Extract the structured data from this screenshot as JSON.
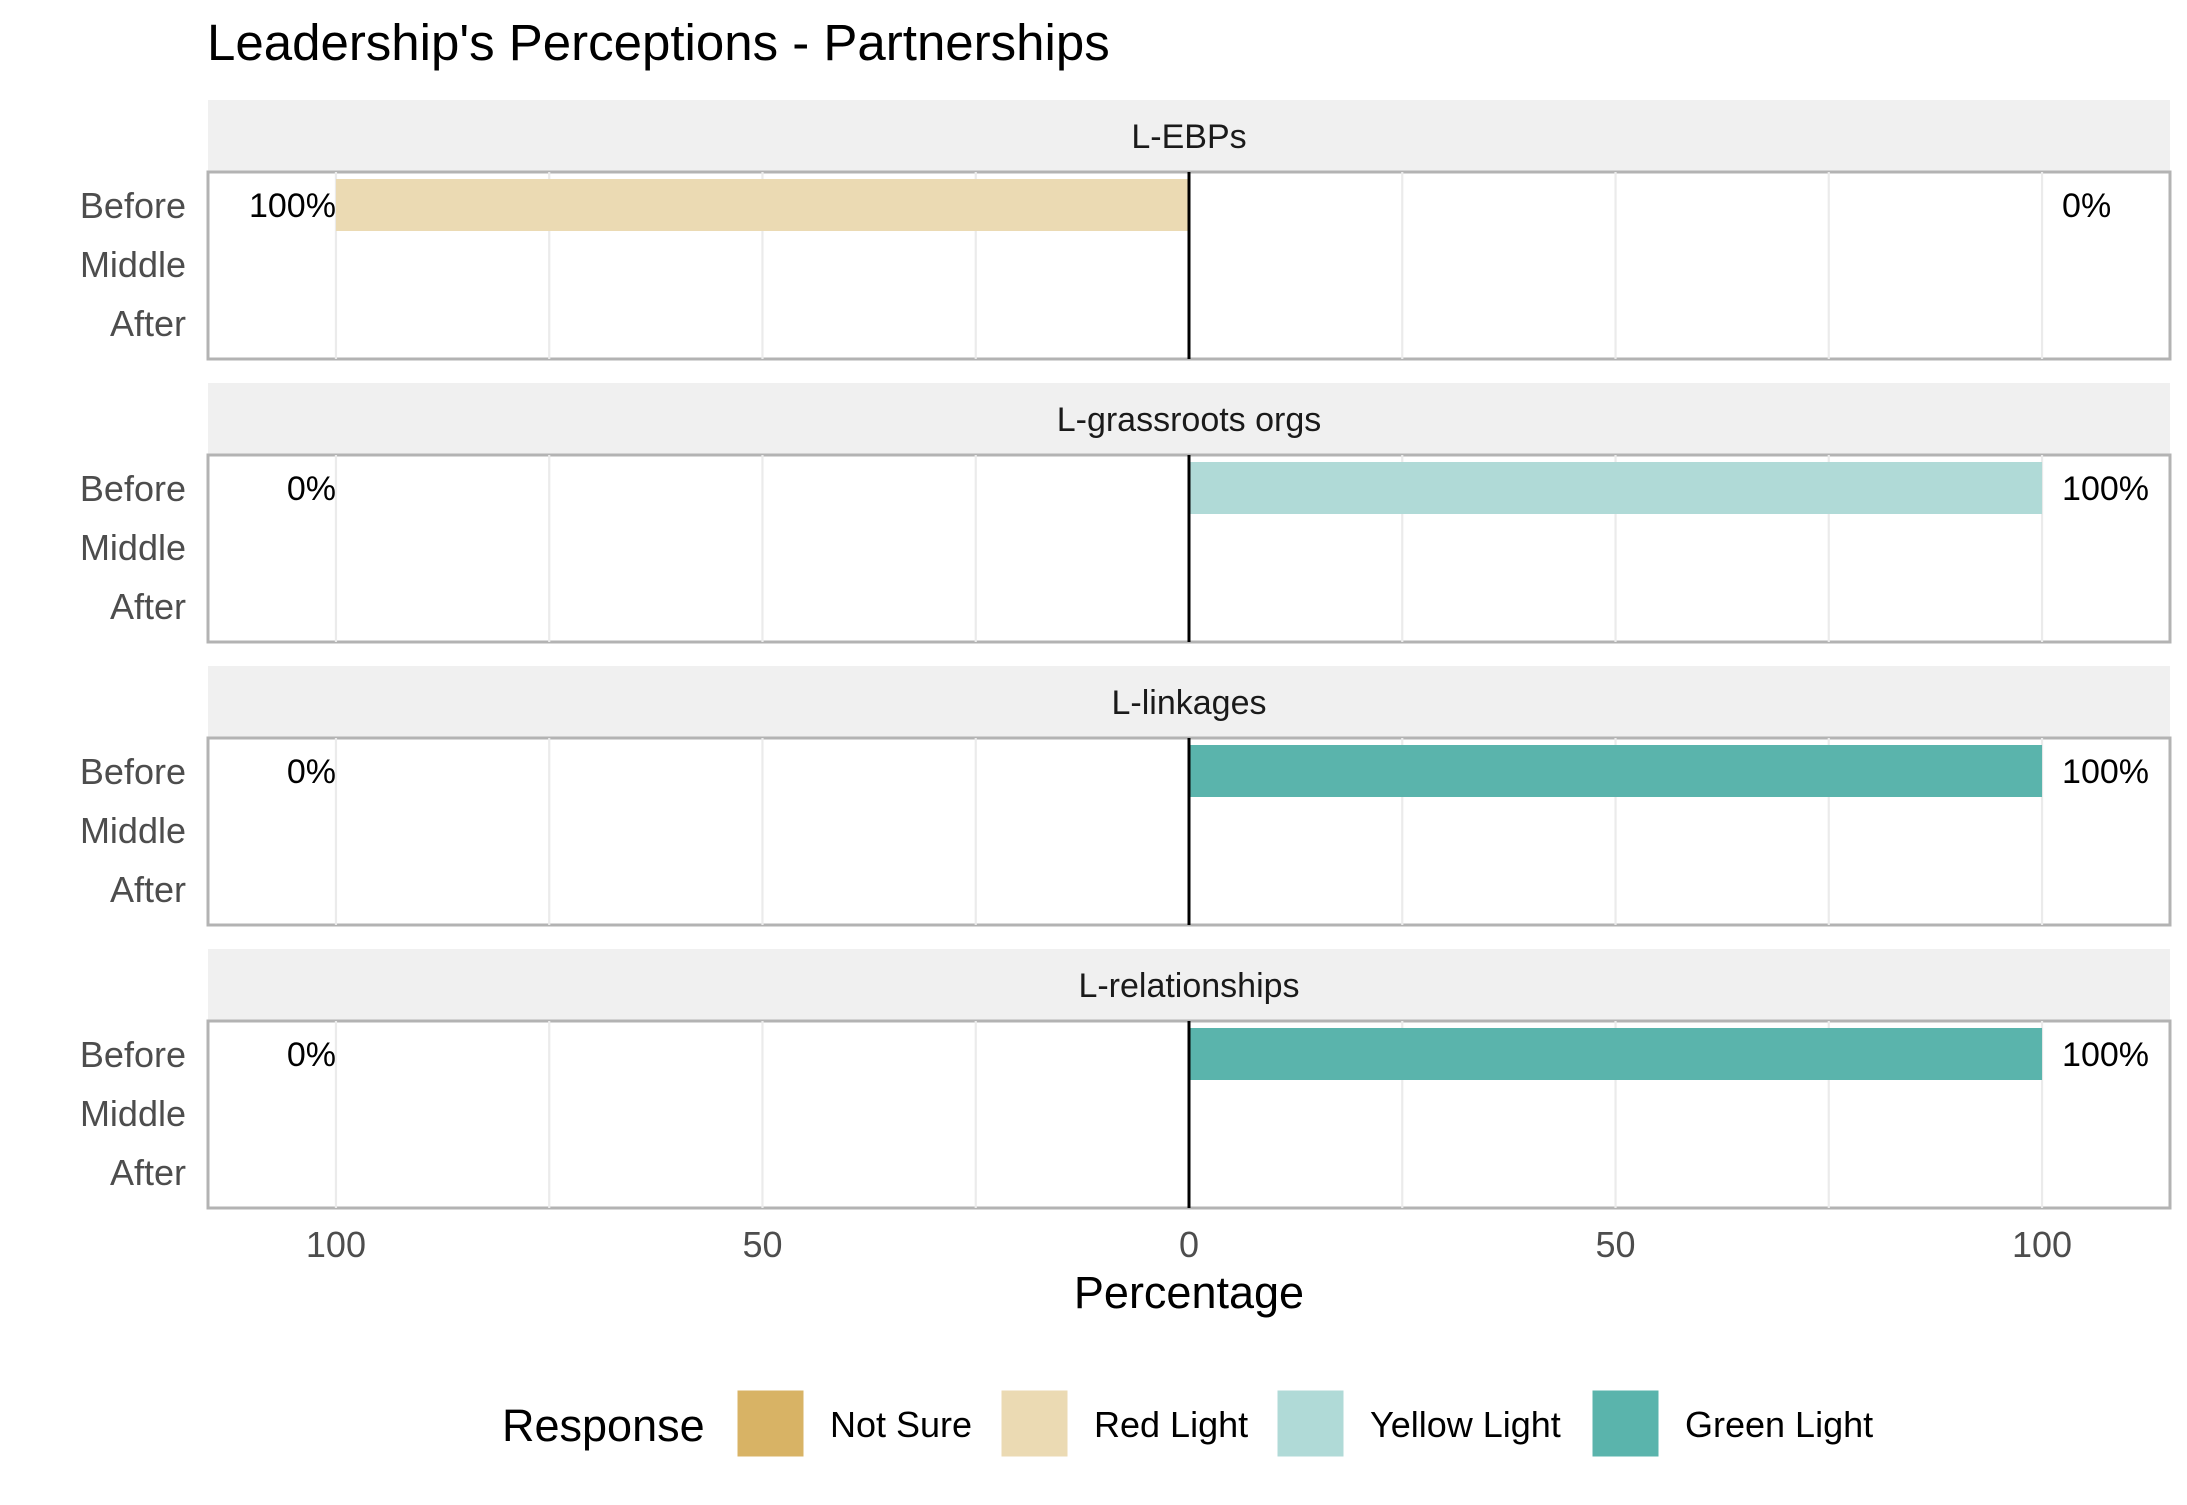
{
  "chart_data": {
    "type": "bar",
    "orientation": "horizontal",
    "title": "Leadership's Perceptions - Partnerships",
    "xlabel": "Percentage",
    "ylabel": "",
    "xlim": [
      -115,
      115
    ],
    "x_ticks": [
      -100,
      -50,
      0,
      50,
      100
    ],
    "x_tick_labels": [
      "100",
      "50",
      "0",
      "50",
      "100"
    ],
    "categories": [
      "Before",
      "Middle",
      "After"
    ],
    "legend": {
      "title": "Response",
      "position": "bottom",
      "items": [
        {
          "name": "Not Sure",
          "color": "#d8b365"
        },
        {
          "name": "Red Light",
          "color": "#ebdab3"
        },
        {
          "name": "Yellow Light",
          "color": "#b0dad7"
        },
        {
          "name": "Green Light",
          "color": "#5ab4ac"
        }
      ]
    },
    "panels": [
      {
        "name": "L-EBPs",
        "bars": [
          {
            "category": "Before",
            "series": "Red Light",
            "value": -100
          }
        ],
        "labels": [
          {
            "category": "Before",
            "side": "left",
            "text": "100%"
          },
          {
            "category": "Before",
            "side": "right",
            "text": "0%"
          }
        ]
      },
      {
        "name": "L-grassroots orgs",
        "bars": [
          {
            "category": "Before",
            "series": "Yellow Light",
            "value": 100
          }
        ],
        "labels": [
          {
            "category": "Before",
            "side": "left",
            "text": "0%"
          },
          {
            "category": "Before",
            "side": "right",
            "text": "100%"
          }
        ]
      },
      {
        "name": "L-linkages",
        "bars": [
          {
            "category": "Before",
            "series": "Green Light",
            "value": 100
          }
        ],
        "labels": [
          {
            "category": "Before",
            "side": "left",
            "text": "0%"
          },
          {
            "category": "Before",
            "side": "right",
            "text": "100%"
          }
        ]
      },
      {
        "name": "L-relationships",
        "bars": [
          {
            "category": "Before",
            "series": "Green Light",
            "value": 100
          }
        ],
        "labels": [
          {
            "category": "Before",
            "side": "left",
            "text": "0%"
          },
          {
            "category": "Before",
            "side": "right",
            "text": "100%"
          }
        ]
      }
    ]
  }
}
